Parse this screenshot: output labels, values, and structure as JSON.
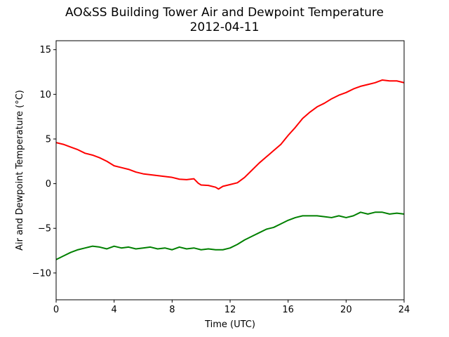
{
  "chart_data": {
    "type": "line",
    "title": "AO&SS Building Tower Air and Dewpoint Temperature",
    "subtitle": "2012-04-11",
    "xlabel": "Time (UTC)",
    "ylabel": "Air and Dewpoint Temperature (°C)",
    "xlim": [
      0,
      24
    ],
    "ylim": [
      -13,
      16
    ],
    "xticks": [
      0,
      4,
      8,
      12,
      16,
      20,
      24
    ],
    "yticks": [
      -10,
      -5,
      0,
      5,
      10,
      15
    ],
    "grid": false,
    "series": [
      {
        "color": "#ff0000",
        "x": [
          0,
          0.5,
          1,
          1.5,
          2,
          2.5,
          3,
          3.5,
          4,
          4.5,
          5,
          5.5,
          6,
          6.5,
          7,
          7.5,
          8,
          8.5,
          9,
          9.5,
          9.8,
          10,
          10.5,
          11,
          11.2,
          11.5,
          12,
          12.5,
          13,
          13.5,
          14,
          14.5,
          15,
          15.5,
          16,
          16.5,
          17,
          17.5,
          18,
          18.5,
          19,
          19.5,
          20,
          20.5,
          21,
          21.5,
          22,
          22.5,
          23,
          23.5,
          24
        ],
        "y": [
          4.6,
          4.4,
          4.1,
          3.8,
          3.4,
          3.2,
          2.9,
          2.5,
          2.0,
          1.8,
          1.6,
          1.3,
          1.1,
          1.0,
          0.9,
          0.8,
          0.7,
          0.5,
          0.45,
          0.55,
          0.05,
          -0.15,
          -0.2,
          -0.4,
          -0.6,
          -0.3,
          -0.1,
          0.1,
          0.7,
          1.5,
          2.3,
          3.0,
          3.7,
          4.4,
          5.4,
          6.3,
          7.3,
          8.0,
          8.6,
          9.0,
          9.5,
          9.9,
          10.2,
          10.6,
          10.9,
          11.1,
          11.3,
          11.6,
          11.5,
          11.5,
          11.3
        ]
      },
      {
        "color": "#008000",
        "x": [
          0,
          0.5,
          1,
          1.5,
          2,
          2.5,
          3,
          3.5,
          4,
          4.5,
          5,
          5.5,
          6,
          6.5,
          7,
          7.5,
          8,
          8.5,
          9,
          9.5,
          10,
          10.5,
          11,
          11.5,
          12,
          12.5,
          13,
          13.5,
          14,
          14.5,
          15,
          15.5,
          16,
          16.5,
          17,
          17.5,
          18,
          18.5,
          19,
          19.5,
          20,
          20.5,
          21,
          21.5,
          22,
          22.5,
          23,
          23.5,
          24
        ],
        "y": [
          -8.5,
          -8.1,
          -7.7,
          -7.4,
          -7.2,
          -7.0,
          -7.1,
          -7.3,
          -7.0,
          -7.2,
          -7.1,
          -7.3,
          -7.2,
          -7.1,
          -7.3,
          -7.2,
          -7.4,
          -7.1,
          -7.3,
          -7.2,
          -7.4,
          -7.3,
          -7.4,
          -7.4,
          -7.2,
          -6.8,
          -6.3,
          -5.9,
          -5.5,
          -5.1,
          -4.9,
          -4.5,
          -4.1,
          -3.8,
          -3.6,
          -3.6,
          -3.6,
          -3.7,
          -3.8,
          -3.6,
          -3.8,
          -3.6,
          -3.2,
          -3.4,
          -3.2,
          -3.2,
          -3.4,
          -3.3,
          -3.4
        ]
      }
    ]
  }
}
